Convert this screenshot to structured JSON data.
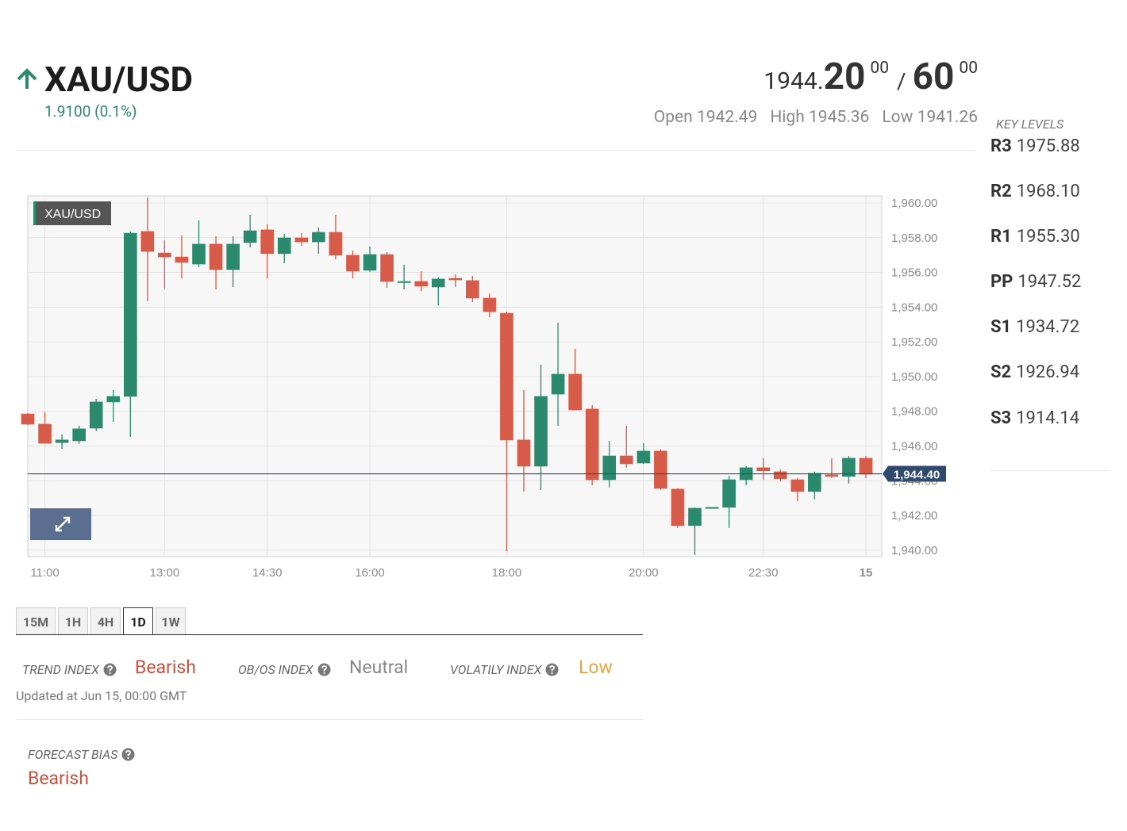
{
  "header": {
    "symbol": "XAU/USD",
    "change": "1.9100 (0.1%)",
    "bid_prefix": "1944.",
    "bid_big": "20",
    "bid_small": "00",
    "separator": "/",
    "ask_big": "60",
    "ask_small": "00",
    "stats": [
      {
        "label": "Open",
        "value": "1942.49"
      },
      {
        "label": "High",
        "value": "1945.36"
      },
      {
        "label": "Low",
        "value": "1941.26"
      }
    ]
  },
  "key_levels": {
    "title": "KEY LEVELS",
    "levels": [
      {
        "name": "R3",
        "value": "1975.88"
      },
      {
        "name": "R2",
        "value": "1968.10"
      },
      {
        "name": "R1",
        "value": "1955.30"
      },
      {
        "name": "PP",
        "value": "1947.52"
      },
      {
        "name": "S1",
        "value": "1934.72"
      },
      {
        "name": "S2",
        "value": "1926.94"
      },
      {
        "name": "S3",
        "value": "1914.14"
      }
    ]
  },
  "chart_data": {
    "type": "candlestick",
    "legend_label": "XAU/USD",
    "categories": [
      null,
      "11:00",
      null,
      null,
      null,
      null,
      null,
      null,
      "13:00",
      null,
      null,
      null,
      null,
      null,
      "14:30",
      null,
      null,
      null,
      null,
      null,
      "16:00",
      null,
      null,
      null,
      null,
      null,
      null,
      null,
      "18:00",
      null,
      null,
      null,
      null,
      null,
      null,
      null,
      "20:00",
      null,
      null,
      null,
      null,
      null,
      null,
      "22:30",
      null,
      null,
      null,
      null,
      null,
      "15"
    ],
    "open": [
      1947.85,
      1947.26,
      1946.2,
      1946.3,
      1947.03,
      1948.54,
      1948.86,
      1958.36,
      1957.12,
      1956.89,
      1956.48,
      1957.63,
      1956.16,
      1957.72,
      1958.45,
      1957.08,
      1957.99,
      1957.76,
      1958.31,
      1956.99,
      1956.12,
      1957.03,
      1955.43,
      1955.48,
      1955.16,
      1955.66,
      1955.53,
      1954.52,
      1953.65,
      1946.35,
      1944.84,
      1948.99,
      1950.14,
      1948.13,
      1944.06,
      1945.43,
      1945.02,
      1945.71,
      1943.52,
      1941.42,
      1942.47,
      1942.47,
      1944.06,
      1944.75,
      1944.52,
      1944.06,
      1943.38,
      1944.34,
      1944.25,
      1945.3
    ],
    "high": [
      1947.9,
      1947.95,
      1946.67,
      1947.17,
      1948.72,
      1949.22,
      1958.36,
      1960.32,
      1957.85,
      1958.13,
      1959.0,
      1958.08,
      1958.08,
      1959.32,
      1958.77,
      1958.22,
      1958.26,
      1958.58,
      1959.32,
      1957.26,
      1957.49,
      1957.17,
      1956.44,
      1956.07,
      1955.71,
      1955.89,
      1955.8,
      1954.79,
      1953.74,
      1949.22,
      1950.68,
      1953.11,
      1951.6,
      1948.36,
      1946.3,
      1947.17,
      1946.16,
      1945.8,
      1943.56,
      1942.47,
      1942.47,
      1944.29,
      1944.84,
      1945.3,
      1944.66,
      1944.16,
      1944.52,
      1945.3,
      1945.43,
      1945.43
    ],
    "low": [
      1947.2,
      1946.16,
      1945.84,
      1946.12,
      1946.85,
      1947.4,
      1946.53,
      1954.34,
      1955.07,
      1955.66,
      1956.3,
      1955.02,
      1955.16,
      1957.44,
      1955.66,
      1956.53,
      1957.53,
      1957.08,
      1956.76,
      1955.66,
      1956.03,
      1955.11,
      1955.02,
      1954.93,
      1954.11,
      1955.16,
      1954.29,
      1953.42,
      1939.95,
      1943.38,
      1943.47,
      1947.17,
      1948.08,
      1943.74,
      1943.61,
      1944.75,
      1944.98,
      1943.47,
      1941.28,
      1939.73,
      1942.47,
      1941.28,
      1943.74,
      1944.06,
      1943.97,
      1942.83,
      1942.92,
      1944.16,
      1943.84,
      1944.16
    ],
    "close": [
      1947.26,
      1946.16,
      1946.35,
      1946.99,
      1948.54,
      1948.86,
      1958.26,
      1957.21,
      1956.89,
      1956.58,
      1957.63,
      1956.16,
      1957.63,
      1958.4,
      1957.08,
      1957.99,
      1957.76,
      1958.31,
      1956.99,
      1956.07,
      1957.03,
      1955.48,
      1955.48,
      1955.21,
      1955.62,
      1955.57,
      1954.52,
      1953.74,
      1946.35,
      1944.84,
      1948.86,
      1950.14,
      1948.08,
      1944.06,
      1945.43,
      1944.98,
      1945.71,
      1943.56,
      1941.42,
      1942.42,
      1942.47,
      1944.06,
      1944.75,
      1944.57,
      1944.11,
      1943.38,
      1944.43,
      1944.25,
      1945.3,
      1944.38
    ],
    "up_color": "#2b8a6e",
    "down_color": "#d65b48",
    "ylim": [
      1939.63,
      1960.41
    ],
    "yticks": [
      {
        "value": 1940,
        "label": "1,940.00"
      },
      {
        "value": 1942,
        "label": "1,942.00"
      },
      {
        "value": 1944,
        "label": "1,944.00"
      },
      {
        "value": 1946,
        "label": "1,946.00"
      },
      {
        "value": 1948,
        "label": "1,948.00"
      },
      {
        "value": 1950,
        "label": "1,950.00"
      },
      {
        "value": 1952,
        "label": "1,952.00"
      },
      {
        "value": 1954,
        "label": "1,954.00"
      },
      {
        "value": 1956,
        "label": "1,956.00"
      },
      {
        "value": 1958,
        "label": "1,958.00"
      },
      {
        "value": 1960,
        "label": "1,960.00"
      }
    ],
    "last_price": {
      "value": 1944.4,
      "label": "1,944.40"
    },
    "last_price_color": "#2f4a6d",
    "grid": true
  },
  "timeframes": [
    "15M",
    "1H",
    "4H",
    "1D",
    "1W"
  ],
  "indices": [
    {
      "label": "TREND INDEX",
      "value": "Bearish"
    },
    {
      "label": "OB/OS INDEX",
      "value": "Neutral"
    },
    {
      "label": "VOLATILY INDEX",
      "value": "Low"
    }
  ],
  "updated": "Updated at Jun 15, 00:00 GMT",
  "forecast": {
    "label": "FORECAST BIAS",
    "value": "Bearish"
  }
}
